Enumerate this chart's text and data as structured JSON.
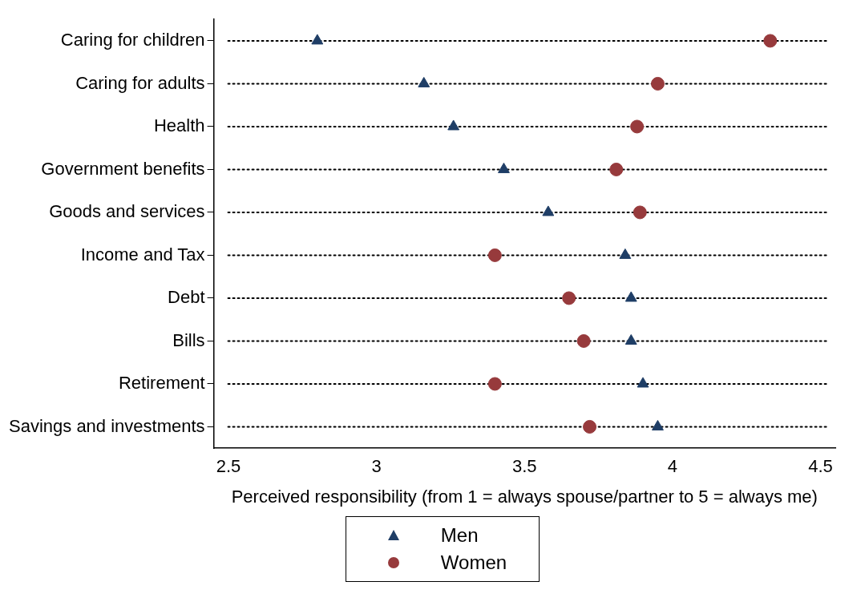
{
  "chart_data": {
    "type": "scatter",
    "xlabel": "Perceived responsibility (from 1 = always spouse/partner to 5 = always me)",
    "categories": [
      "Caring for children",
      "Caring for adults",
      "Health",
      "Government benefits",
      "Goods and services",
      "Income and Tax",
      "Debt",
      "Bills",
      "Retirement",
      "Savings and investments"
    ],
    "series": [
      {
        "name": "Men",
        "color": "#1f3e66",
        "marker": "triangle",
        "values": [
          2.8,
          3.16,
          3.26,
          3.43,
          3.58,
          3.84,
          3.86,
          3.86,
          3.9,
          3.95
        ]
      },
      {
        "name": "Women",
        "color": "#973a3c",
        "marker": "circle",
        "values": [
          4.33,
          3.95,
          3.88,
          3.81,
          3.89,
          3.4,
          3.65,
          3.7,
          3.4,
          3.72
        ]
      }
    ],
    "xlim": [
      2.45,
      4.55
    ],
    "xticks": [
      2.5,
      3,
      3.5,
      4,
      4.5
    ],
    "orientation": "horizontal",
    "grid": "y",
    "line_style": "dotted",
    "legend": "bottom"
  }
}
